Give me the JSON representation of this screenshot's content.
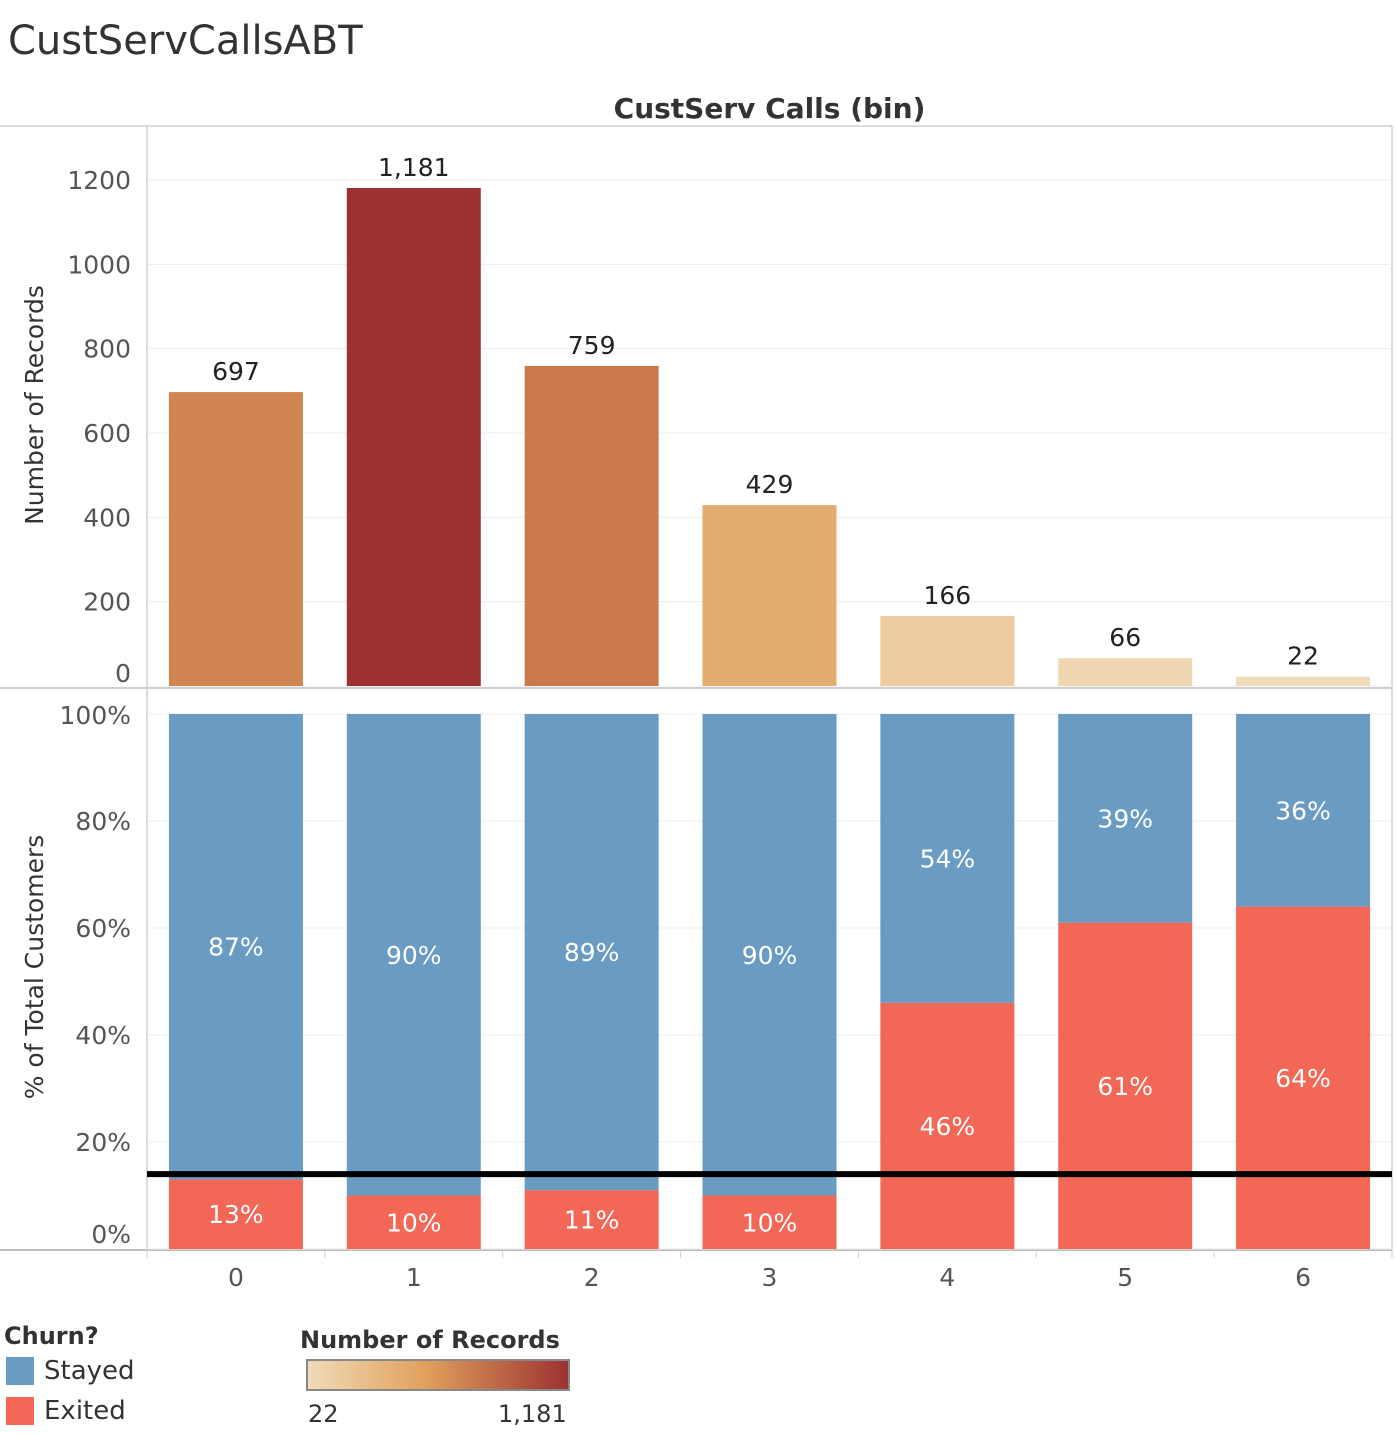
{
  "title": "CustServCallsABT",
  "colors": {
    "stayed": "#6a9bc3",
    "exited": "#f26755",
    "grad_low": "#efdcb9",
    "grad_mid": "#e1a05c",
    "grad_high": "#9c3131",
    "refline": "#000000"
  },
  "chart_data": {
    "type": "bar",
    "column_header": "CustServ Calls (bin)",
    "categories": [
      "0",
      "1",
      "2",
      "3",
      "4",
      "5",
      "6"
    ],
    "top": {
      "ylabel": "Number of Records",
      "ylim": [
        0,
        1200
      ],
      "yticks": [
        0,
        200,
        400,
        600,
        800,
        1000,
        1200
      ],
      "values": [
        697,
        1181,
        759,
        429,
        166,
        66,
        22
      ],
      "value_labels": [
        "697",
        "1,181",
        "759",
        "429",
        "166",
        "66",
        "22"
      ]
    },
    "bottom": {
      "type": "stacked-bar",
      "ylabel": "% of Total Customers",
      "ylim": [
        0,
        100
      ],
      "yticks": [
        "0%",
        "20%",
        "40%",
        "60%",
        "80%",
        "100%"
      ],
      "series": [
        {
          "name": "Exited",
          "values": [
            13,
            10,
            11,
            10,
            46,
            61,
            64
          ],
          "labels": [
            "13%",
            "10%",
            "11%",
            "10%",
            "46%",
            "61%",
            "64%"
          ]
        },
        {
          "name": "Stayed",
          "values": [
            87,
            90,
            89,
            90,
            54,
            39,
            36
          ],
          "labels": [
            "87%",
            "90%",
            "89%",
            "90%",
            "54%",
            "39%",
            "36%"
          ]
        }
      ],
      "reference_line": 14
    }
  },
  "legend": {
    "churn_title": "Churn?",
    "items": [
      {
        "label": "Stayed",
        "color": "#6a9bc3"
      },
      {
        "label": "Exited",
        "color": "#f26755"
      }
    ],
    "gradient_title": "Number of Records",
    "gradient_min": "22",
    "gradient_max": "1,181"
  }
}
